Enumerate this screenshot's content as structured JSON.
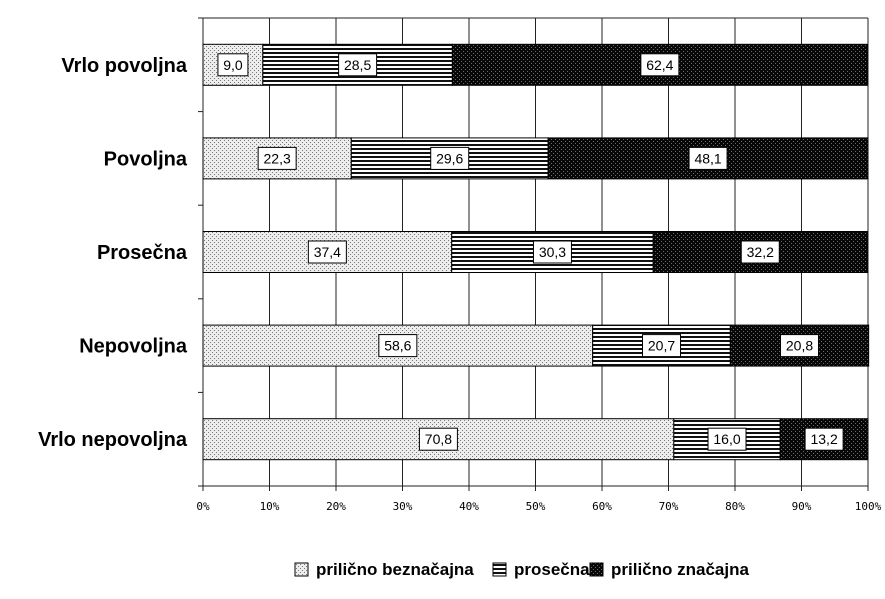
{
  "chart_data": {
    "type": "bar",
    "orientation": "horizontal",
    "stacked": true,
    "percent_stacked": true,
    "title": "",
    "categories": [
      "Vrlo povoljna",
      "Povoljna",
      "Prosečna",
      "Nepovoljna",
      "Vrlo nepovoljna"
    ],
    "series": [
      {
        "name": "prilično beznačajna",
        "values": [
          9.0,
          22.3,
          37.4,
          58.6,
          70.8
        ],
        "labels": [
          "9,0",
          "22,3",
          "37,4",
          "58,6",
          "70,8"
        ],
        "pattern": "dots-light",
        "color": "#cfcfcf"
      },
      {
        "name": "prosečna",
        "values": [
          28.5,
          29.6,
          30.3,
          20.7,
          16.0
        ],
        "labels": [
          "28,5",
          "29,6",
          "30,3",
          "20,7",
          "16,0"
        ],
        "pattern": "horizontal-lines",
        "color": "#808080"
      },
      {
        "name": "prilično značajna",
        "values": [
          62.4,
          48.1,
          32.2,
          20.8,
          13.2
        ],
        "labels": [
          "62,4",
          "48,1",
          "32,2",
          "20,8",
          "13,2"
        ],
        "pattern": "dots-dark",
        "color": "#0a0a0a"
      }
    ],
    "xlim": [
      0,
      100
    ],
    "x_ticks": [
      "0%",
      "10%",
      "20%",
      "30%",
      "40%",
      "50%",
      "60%",
      "70%",
      "80%",
      "90%",
      "100%"
    ],
    "xlabel": "",
    "ylabel": "",
    "grid": true,
    "legend": "bottom"
  }
}
